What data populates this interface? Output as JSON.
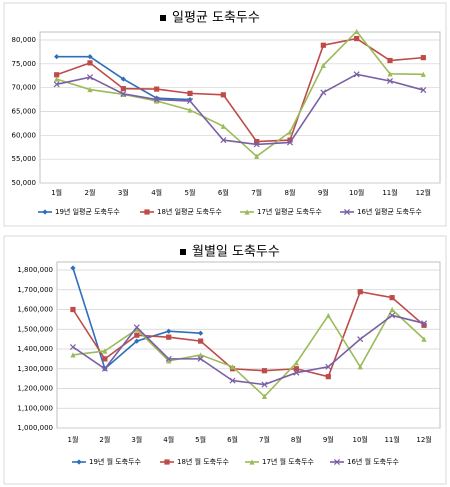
{
  "chart_data": [
    {
      "type": "line",
      "title": "일평균 도축두수",
      "categories": [
        "1월",
        "2월",
        "3월",
        "4월",
        "5월",
        "6월",
        "7월",
        "8월",
        "9월",
        "10월",
        "11월",
        "12월"
      ],
      "ylim": [
        50000,
        80000
      ],
      "yticks": [
        {
          "value": 50000,
          "label": "50,000"
        },
        {
          "value": 55000,
          "label": "55,000"
        },
        {
          "value": 60000,
          "label": "60,000"
        },
        {
          "value": 65000,
          "label": "65,000"
        },
        {
          "value": 70000,
          "label": "70,000"
        },
        {
          "value": 75000,
          "label": "75,000"
        },
        {
          "value": 80000,
          "label": "80,000"
        }
      ],
      "grid": true,
      "series": [
        {
          "name": "19년 일평균 도축두수",
          "color": "#2e6fba",
          "marker": "diamond",
          "values": [
            76500,
            76500,
            71800,
            67800,
            67500,
            null,
            null,
            null,
            null,
            null,
            null,
            null
          ]
        },
        {
          "name": "18년 일평균 도축두수",
          "color": "#be4b48",
          "marker": "square",
          "values": [
            72700,
            75200,
            69800,
            69700,
            68800,
            68500,
            58700,
            59000,
            78900,
            80300,
            75700,
            76300
          ]
        },
        {
          "name": "17년 일평균 도축두수",
          "color": "#9bbb59",
          "marker": "triangle",
          "values": [
            71800,
            69600,
            68600,
            67200,
            65300,
            61900,
            55600,
            60700,
            74700,
            81800,
            72900,
            72800
          ]
        },
        {
          "name": "16년 일평균 도축두수",
          "color": "#7a5fa5",
          "marker": "x",
          "values": [
            70700,
            72200,
            68700,
            67500,
            67200,
            59000,
            58100,
            58500,
            69000,
            72800,
            71400,
            69500
          ]
        }
      ]
    },
    {
      "type": "line",
      "title": "월별일 도축두수",
      "categories": [
        "1월",
        "2월",
        "3월",
        "4월",
        "5월",
        "6월",
        "7월",
        "8월",
        "9월",
        "10월",
        "11월",
        "12월"
      ],
      "ylim": [
        1000000,
        1800000
      ],
      "yticks": [
        {
          "value": 1000000,
          "label": "1,000,000"
        },
        {
          "value": 1100000,
          "label": "1,100,000"
        },
        {
          "value": 1200000,
          "label": "1,200,000"
        },
        {
          "value": 1300000,
          "label": "1,300,000"
        },
        {
          "value": 1400000,
          "label": "1,400,000"
        },
        {
          "value": 1500000,
          "label": "1,500,000"
        },
        {
          "value": 1600000,
          "label": "1,600,000"
        },
        {
          "value": 1700000,
          "label": "1,700,000"
        },
        {
          "value": 1800000,
          "label": "1,800,000"
        }
      ],
      "grid": true,
      "series": [
        {
          "name": "19년 월 도축두수",
          "color": "#2e6fba",
          "marker": "diamond",
          "values": [
            1810000,
            1300000,
            1440000,
            1490000,
            1480000,
            null,
            null,
            null,
            null,
            null,
            null,
            null
          ]
        },
        {
          "name": "18년 월 도축두수",
          "color": "#be4b48",
          "marker": "square",
          "values": [
            1600000,
            1350000,
            1470000,
            1460000,
            1440000,
            1300000,
            1290000,
            1300000,
            1260000,
            1690000,
            1660000,
            1520000
          ]
        },
        {
          "name": "17년 월 도축두수",
          "color": "#9bbb59",
          "marker": "triangle",
          "values": [
            1370000,
            1390000,
            1500000,
            1340000,
            1370000,
            1310000,
            1160000,
            1330000,
            1570000,
            1310000,
            1600000,
            1450000
          ]
        },
        {
          "name": "16년 월 도축두수",
          "color": "#7a5fa5",
          "marker": "x",
          "values": [
            1410000,
            1300000,
            1510000,
            1350000,
            1350000,
            1240000,
            1220000,
            1280000,
            1310000,
            1450000,
            1570000,
            1530000
          ]
        }
      ]
    }
  ]
}
